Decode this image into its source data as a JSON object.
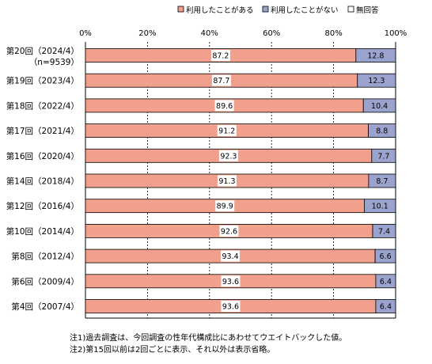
{
  "chart_data": {
    "type": "bar",
    "stacked": true,
    "orientation": "horizontal",
    "xlim": [
      0,
      100
    ],
    "x_ticks": [
      "0%",
      "20%",
      "40%",
      "60%",
      "80%",
      "100%"
    ],
    "grid": true,
    "legend_position": "top-center",
    "categories": [
      "第20回（2024/4）",
      "第19回（2023/4）",
      "第18回（2022/4）",
      "第17回（2021/4）",
      "第16回（2020/4）",
      "第14回（2018/4）",
      "第12回（2016/4）",
      "第10回（2014/4）",
      "第8回（2012/4）",
      "第6回（2009/4）",
      "第4回（2007/4）"
    ],
    "category_sublabels": [
      "（n=9539）",
      "",
      "",
      "",
      "",
      "",
      "",
      "",
      "",
      "",
      ""
    ],
    "series": [
      {
        "name": "利用したことがある",
        "color": "#F0A08C",
        "values": [
          87.2,
          87.7,
          89.6,
          91.2,
          92.3,
          91.3,
          89.9,
          92.6,
          93.4,
          93.6,
          93.6
        ]
      },
      {
        "name": "利用したことがない",
        "color": "#9AA3CE",
        "values": [
          12.8,
          12.3,
          10.4,
          8.8,
          7.7,
          8.7,
          10.1,
          7.4,
          6.6,
          6.4,
          6.4
        ]
      },
      {
        "name": "無回答",
        "color": "#FFFFFF",
        "values": [
          0,
          0,
          0,
          0,
          0,
          0,
          0,
          0,
          0,
          0,
          0
        ]
      }
    ]
  },
  "notes": [
    "注1)過去調査は、今回調査の性年代構成比にあわせてウエイトバックした値。",
    "注2)第15回以前は2回ごとに表示、それ以外は表示省略。"
  ]
}
